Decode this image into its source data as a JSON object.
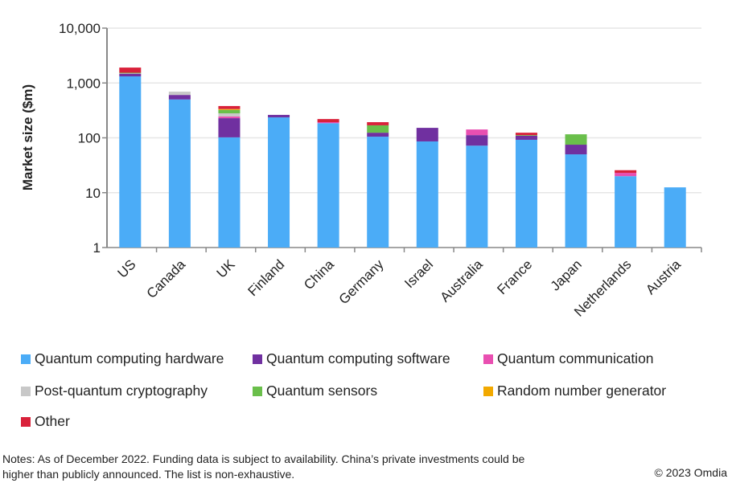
{
  "chart_data": {
    "type": "bar",
    "stacked": true,
    "yscale": "log",
    "ylabel": "Market size ($m)",
    "xlabel": "",
    "ylim": [
      1,
      10000
    ],
    "yticks": [
      1,
      10,
      100,
      1000,
      10000
    ],
    "ytick_labels": [
      "1",
      "10",
      "100",
      "1,000",
      "10,000"
    ],
    "grid": true,
    "legend_position": "bottom",
    "categories": [
      "US",
      "Canada",
      "UK",
      "Finland",
      "China",
      "Germany",
      "Israel",
      "Australia",
      "France",
      "Japan",
      "Netherlands",
      "Austria"
    ],
    "series": [
      {
        "name": "Quantum computing hardware",
        "color": "#4BACF7",
        "values": [
          1320,
          500,
          102,
          236,
          185,
          105,
          86,
          72,
          92,
          50,
          20,
          12.5
        ]
      },
      {
        "name": "Quantum computing software",
        "color": "#7030A0",
        "values": [
          160,
          105,
          126,
          26,
          0,
          19,
          66,
          40,
          17,
          25,
          0,
          0
        ]
      },
      {
        "name": "Quantum communication",
        "color": "#E94FB1",
        "values": [
          0,
          0,
          17,
          0,
          8,
          0,
          0,
          30,
          0,
          0,
          3,
          0
        ]
      },
      {
        "name": "Post-quantum cryptography",
        "color": "#C8C8C8",
        "values": [
          20,
          90,
          35,
          0,
          0,
          0,
          0,
          0,
          0,
          0,
          0,
          0
        ]
      },
      {
        "name": "Quantum sensors",
        "color": "#6ABF4B",
        "values": [
          40,
          0,
          43,
          0,
          0,
          45,
          0,
          0,
          3,
          41,
          0,
          0
        ]
      },
      {
        "name": "Random number generator",
        "color": "#F2A900",
        "values": [
          0,
          0,
          12,
          0,
          0,
          0,
          0,
          0,
          0,
          0,
          0,
          0
        ]
      },
      {
        "name": "Other",
        "color": "#D9213A",
        "values": [
          370,
          0,
          45,
          0,
          27,
          24,
          0,
          0,
          12,
          0,
          2.7,
          0
        ]
      }
    ]
  },
  "notes": "Notes: As of December 2022. Funding data is subject to availability. China’s private investments could be higher than publicly announced. The list is non-exhaustive.",
  "copyright": "© 2023 Omdia"
}
